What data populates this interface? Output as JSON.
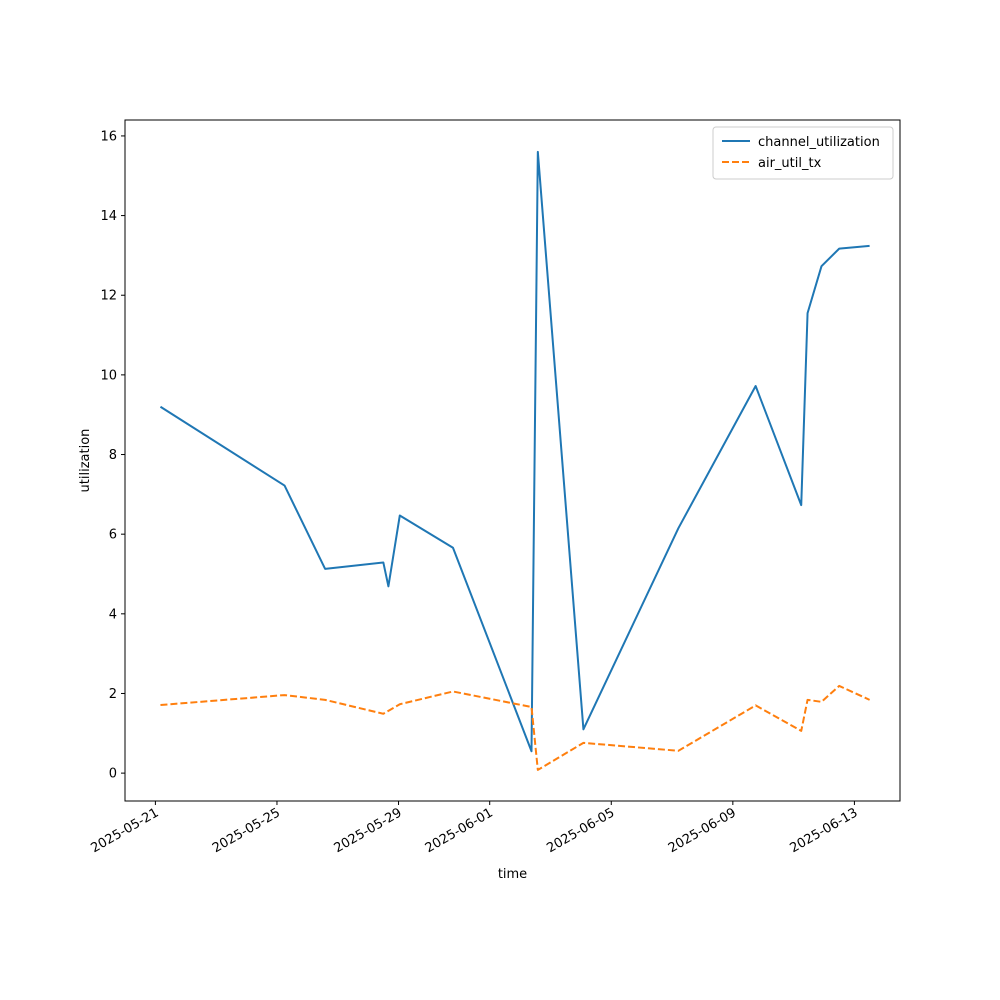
{
  "chart_data": {
    "type": "line",
    "title": "",
    "xlabel": "time",
    "ylabel": "utilization",
    "x_type": "datetime",
    "xlim": [
      "2025-05-20T00:00",
      "2025-06-14T12:00"
    ],
    "ylim": [
      -0.7,
      16.4
    ],
    "x_ticks": [
      "2025-05-21",
      "2025-05-25",
      "2025-05-29",
      "2025-06-01",
      "2025-06-05",
      "2025-06-09",
      "2025-06-13"
    ],
    "y_ticks": [
      0,
      2,
      4,
      6,
      8,
      10,
      12,
      14,
      16
    ],
    "legend_position": "top-right",
    "grid": false,
    "series": [
      {
        "name": "channel_utilization",
        "color": "#1f77b4",
        "line_style": "solid",
        "points": [
          [
            "2025-05-21T04:00",
            9.2
          ],
          [
            "2025-05-25T06:00",
            7.22
          ],
          [
            "2025-05-26T14:00",
            5.13
          ],
          [
            "2025-05-28T12:00",
            5.29
          ],
          [
            "2025-05-28T16:00",
            4.69
          ],
          [
            "2025-05-29T01:00",
            6.47
          ],
          [
            "2025-05-30T19:00",
            5.66
          ],
          [
            "2025-06-02T09:00",
            0.55
          ],
          [
            "2025-06-02T14:00",
            15.6
          ],
          [
            "2025-06-04T02:00",
            1.1
          ],
          [
            "2025-06-07T05:00",
            6.15
          ],
          [
            "2025-06-09T18:00",
            9.72
          ],
          [
            "2025-06-11T06:00",
            6.73
          ],
          [
            "2025-06-11T11:00",
            11.55
          ],
          [
            "2025-06-11T22:00",
            12.73
          ],
          [
            "2025-06-12T12:00",
            13.17
          ],
          [
            "2025-06-13T12:00",
            13.24
          ]
        ]
      },
      {
        "name": "air_util_tx",
        "color": "#ff7f0e",
        "line_style": "dashed",
        "points": [
          [
            "2025-05-21T04:00",
            1.71
          ],
          [
            "2025-05-25T06:00",
            1.96
          ],
          [
            "2025-05-26T14:00",
            1.84
          ],
          [
            "2025-05-28T12:00",
            1.49
          ],
          [
            "2025-05-29T01:00",
            1.73
          ],
          [
            "2025-05-30T19:00",
            2.05
          ],
          [
            "2025-06-02T09:00",
            1.66
          ],
          [
            "2025-06-02T14:00",
            0.08
          ],
          [
            "2025-06-04T02:00",
            0.76
          ],
          [
            "2025-06-07T05:00",
            0.56
          ],
          [
            "2025-06-09T18:00",
            1.7
          ],
          [
            "2025-06-11T06:00",
            1.06
          ],
          [
            "2025-06-11T11:00",
            1.84
          ],
          [
            "2025-06-11T22:00",
            1.79
          ],
          [
            "2025-06-12T12:00",
            2.19
          ],
          [
            "2025-06-13T12:00",
            1.84
          ]
        ]
      }
    ]
  }
}
